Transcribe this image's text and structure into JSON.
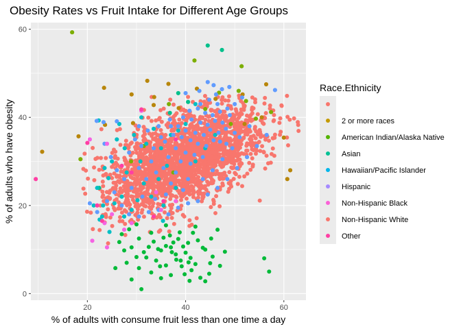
{
  "chart_data": {
    "type": "scatter",
    "title": "Obesity Rates vs Fruit Intake for Different Age Groups",
    "xlabel": "% of adults with consume fruit less than one time a day",
    "ylabel": "% of adults who have obesity",
    "xlim": [
      8.5,
      64.5
    ],
    "ylim": [
      -1.5,
      61.5
    ],
    "x_ticks": [
      20,
      40,
      60
    ],
    "y_ticks": [
      0,
      20,
      40,
      60
    ],
    "grid": true,
    "panel_background": "#EBEBEB",
    "legend": {
      "title": "Race.Ethnicity",
      "position": "right",
      "entries": [
        {
          "label": "",
          "color": "#F8766D"
        },
        {
          "label": "2 or more races",
          "color": "#C49A00"
        },
        {
          "label": "American Indian/Alaska Native",
          "color": "#53B400"
        },
        {
          "label": "Asian",
          "color": "#00C094"
        },
        {
          "label": "Hawaiian/Pacific Islander",
          "color": "#00B6EB"
        },
        {
          "label": "Hispanic",
          "color": "#A58AFF"
        },
        {
          "label": "Non-Hispanic Black",
          "color": "#FB61D7"
        },
        {
          "label": "Non-Hispanic White",
          "color": "#F8766D"
        },
        {
          "label": "Other",
          "color": "#FF3FA4"
        }
      ]
    },
    "series": [
      {
        "name": "",
        "color": "#F8766D",
        "cloud": {
          "center": [
            40,
            31
          ],
          "spread": [
            8,
            6
          ],
          "n": 2200,
          "seed": 7,
          "x_range": [
            18.5,
            63
          ],
          "y_range": [
            10,
            45
          ]
        }
      },
      {
        "name": "2 or more races",
        "color": "#B8860B",
        "points": [
          [
            10.8,
            32.2
          ],
          [
            18.2,
            35.7
          ],
          [
            23.4,
            46.7
          ],
          [
            23.6,
            38.3
          ],
          [
            32.2,
            48.3
          ],
          [
            36.5,
            47.6
          ],
          [
            29,
            45.2
          ],
          [
            33.6,
            44.6
          ],
          [
            42.3,
            46.5
          ],
          [
            51.6,
            45.2
          ],
          [
            56.4,
            47.5
          ],
          [
            60,
            35.4
          ],
          [
            61.3,
            28
          ],
          [
            60.7,
            26
          ],
          [
            33.5,
            42.8
          ],
          [
            46.1,
            44.2
          ],
          [
            55.5,
            40
          ],
          [
            38.6,
            42.1
          ],
          [
            29.3,
            38.7
          ],
          [
            52,
            38.5
          ]
        ]
      },
      {
        "name": "American Indian/Alaska Native",
        "color": "#7CAE00",
        "points": [
          [
            16.9,
            59.3
          ],
          [
            18.6,
            30.5
          ],
          [
            41.8,
            52.9
          ],
          [
            51.4,
            51.6
          ],
          [
            50.8,
            46
          ],
          [
            57.4,
            41.2
          ],
          [
            46.8,
            45.6
          ],
          [
            52.3,
            43.7
          ],
          [
            36.6,
            43
          ],
          [
            44,
            41.9
          ],
          [
            28.9,
            30
          ],
          [
            31.5,
            33.5
          ],
          [
            49.2,
            38.5
          ],
          [
            54.3,
            39.7
          ],
          [
            37.5,
            27.5
          ]
        ]
      },
      {
        "name": "Asian",
        "color": "#00BA38",
        "points": [
          [
            31,
            1
          ],
          [
            29,
            3.2
          ],
          [
            30.5,
            5.8
          ],
          [
            32,
            8.2
          ],
          [
            33,
            4.8
          ],
          [
            34,
            7.5
          ],
          [
            35,
            9.8
          ],
          [
            36,
            6.4
          ],
          [
            37,
            10.5
          ],
          [
            38,
            8.9
          ],
          [
            39,
            7.5
          ],
          [
            40,
            9.3
          ],
          [
            41,
            8.1
          ],
          [
            42,
            6.7
          ],
          [
            43,
            3.6
          ],
          [
            44,
            2.8
          ],
          [
            44.8,
            4.5
          ],
          [
            45,
            6.9
          ],
          [
            45.5,
            8.4
          ],
          [
            47,
            6.3
          ],
          [
            33.5,
            11.8
          ],
          [
            35.5,
            12.7
          ],
          [
            36.8,
            13.2
          ],
          [
            37.5,
            11.6
          ],
          [
            38.5,
            12.4
          ],
          [
            39.5,
            10.7
          ],
          [
            40.5,
            11.5
          ],
          [
            41.5,
            13.8
          ],
          [
            42.5,
            12.1
          ],
          [
            34.4,
            10.1
          ],
          [
            36,
            10.8
          ],
          [
            37.2,
            9.4
          ],
          [
            38.1,
            7.7
          ],
          [
            39.2,
            6.2
          ],
          [
            40.6,
            7.1
          ],
          [
            41.2,
            5.3
          ],
          [
            32.5,
            10.6
          ],
          [
            31.5,
            9.4
          ],
          [
            30,
            8.3
          ],
          [
            29,
            10.5
          ],
          [
            27.5,
            9.8
          ],
          [
            26.5,
            11.7
          ],
          [
            27,
            13.5
          ],
          [
            28.5,
            14.6
          ],
          [
            30.5,
            12.5
          ],
          [
            25.7,
            5.8
          ],
          [
            28,
            7
          ],
          [
            35,
            3.5
          ],
          [
            37,
            4.2
          ],
          [
            39.8,
            4.4
          ],
          [
            43.5,
            10.4
          ],
          [
            45.2,
            12.5
          ],
          [
            46.5,
            14.5
          ],
          [
            48,
            9.5
          ],
          [
            40.8,
            2.9
          ],
          [
            57,
            5
          ],
          [
            56,
            8
          ],
          [
            44,
            10
          ],
          [
            38.8,
            13.9
          ],
          [
            42,
            15.2
          ],
          [
            33,
            13.8
          ],
          [
            36,
            15.5
          ],
          [
            30,
            15.7
          ],
          [
            34.8,
            6.2
          ]
        ]
      },
      {
        "name": "Hawaiian/Pacific Islander",
        "color": "#00C08B",
        "points": [
          [
            44.5,
            56.3
          ],
          [
            47.4,
            55.3
          ],
          [
            38.5,
            45.5
          ],
          [
            40.5,
            43.5
          ],
          [
            36.8,
            41
          ],
          [
            22.4,
            24
          ]
        ]
      },
      {
        "name": "Hispanic",
        "color": "#00BFC4",
        "points": [
          [
            22.3,
            39.3
          ],
          [
            26,
            35
          ],
          [
            27.6,
            33
          ],
          [
            29.5,
            36
          ],
          [
            32,
            34
          ],
          [
            33.5,
            37.4
          ],
          [
            35,
            33
          ],
          [
            37,
            36
          ],
          [
            25,
            30
          ],
          [
            23.5,
            28.5
          ],
          [
            22,
            24
          ],
          [
            30.8,
            30
          ],
          [
            28,
            27.5
          ],
          [
            34.5,
            26
          ],
          [
            36.2,
            29
          ],
          [
            24.3,
            26.2
          ],
          [
            31.5,
            25
          ],
          [
            27,
            22
          ],
          [
            23,
            17.5
          ],
          [
            25.5,
            20.5
          ],
          [
            33,
            22
          ],
          [
            29,
            19
          ],
          [
            35.5,
            20
          ],
          [
            38,
            24
          ],
          [
            42,
            30
          ],
          [
            44,
            33
          ],
          [
            40,
            38.5
          ],
          [
            46,
            36
          ],
          [
            31,
            40
          ],
          [
            42,
            43
          ],
          [
            38.5,
            37
          ],
          [
            26.5,
            38.5
          ],
          [
            30.2,
            21.2
          ],
          [
            35.4,
            16.5
          ],
          [
            23.2,
            20
          ],
          [
            21.3,
            20
          ],
          [
            24.5,
            14
          ],
          [
            22.5,
            16.8
          ],
          [
            27.5,
            17.5
          ]
        ]
      },
      {
        "name": "Non-Hispanic Black",
        "color": "#619CFF",
        "points": [
          [
            21.9,
            39.2
          ],
          [
            26,
            39.1
          ],
          [
            23.3,
            38.9
          ],
          [
            30.5,
            38
          ],
          [
            40,
            45.5
          ],
          [
            42.8,
            46
          ],
          [
            44.5,
            48
          ],
          [
            45.7,
            47.3
          ],
          [
            47.4,
            46.4
          ],
          [
            46.2,
            45.2
          ],
          [
            48.9,
            46.9
          ],
          [
            51.5,
            44.5
          ],
          [
            58.2,
            46.2
          ],
          [
            43,
            43
          ],
          [
            44.8,
            44
          ],
          [
            46.5,
            43
          ],
          [
            40.8,
            41.5
          ],
          [
            42.5,
            42
          ],
          [
            44,
            41
          ],
          [
            45.5,
            40.5
          ],
          [
            47,
            41.3
          ],
          [
            48.5,
            42
          ],
          [
            50,
            43
          ],
          [
            39.5,
            40
          ],
          [
            41.2,
            39.5
          ],
          [
            43,
            38.8
          ],
          [
            44.5,
            38.3
          ],
          [
            46,
            39.2
          ],
          [
            47.5,
            38.8
          ],
          [
            49,
            40.5
          ],
          [
            36.8,
            39.5
          ],
          [
            38.5,
            38
          ],
          [
            40,
            37
          ],
          [
            42,
            36.5
          ],
          [
            43.7,
            36
          ],
          [
            45,
            37.2
          ],
          [
            46.7,
            36.5
          ],
          [
            48.2,
            37.4
          ],
          [
            37.5,
            36
          ],
          [
            39.2,
            35.5
          ],
          [
            41,
            34.8
          ],
          [
            42.5,
            34
          ],
          [
            44.2,
            33.5
          ],
          [
            45.7,
            34.8
          ],
          [
            47,
            34.5
          ],
          [
            35.8,
            34.5
          ],
          [
            38,
            33
          ],
          [
            40,
            32
          ],
          [
            41.8,
            31.5
          ],
          [
            43.5,
            31
          ],
          [
            36.5,
            31
          ],
          [
            39,
            30
          ],
          [
            41,
            29.5
          ],
          [
            33.5,
            33
          ],
          [
            35,
            35.5
          ],
          [
            37,
            38
          ],
          [
            34.5,
            38
          ],
          [
            32.3,
            37
          ],
          [
            29.7,
            35
          ],
          [
            31,
            33.5
          ],
          [
            28.5,
            32
          ],
          [
            33,
            30
          ],
          [
            30.5,
            28.5
          ],
          [
            34,
            27.5
          ],
          [
            32,
            26
          ],
          [
            35.5,
            28.5
          ],
          [
            38,
            27.5
          ],
          [
            40.5,
            26
          ],
          [
            37,
            25
          ],
          [
            39.5,
            23.5
          ],
          [
            36,
            22.5
          ],
          [
            33.8,
            21.5
          ],
          [
            31.2,
            22
          ],
          [
            29,
            24
          ],
          [
            27.5,
            26
          ],
          [
            26,
            28
          ],
          [
            24.8,
            31
          ],
          [
            23.5,
            34
          ],
          [
            20.5,
            20.5
          ],
          [
            22,
            18.5
          ],
          [
            24,
            21
          ],
          [
            25.5,
            23
          ],
          [
            27,
            20
          ],
          [
            28.5,
            18
          ],
          [
            30.5,
            17.5
          ],
          [
            32.5,
            18.5
          ],
          [
            34.5,
            19
          ],
          [
            36.5,
            18
          ],
          [
            38.5,
            19.5
          ],
          [
            40.5,
            20.5
          ],
          [
            42.5,
            21
          ],
          [
            44.5,
            22.5
          ],
          [
            46.5,
            24
          ],
          [
            48.5,
            26
          ],
          [
            50.5,
            28.5
          ],
          [
            52.5,
            31
          ],
          [
            54.5,
            33.5
          ],
          [
            56.5,
            36
          ],
          [
            51,
            35.5
          ],
          [
            53,
            38
          ],
          [
            49.5,
            33
          ],
          [
            47.5,
            30.5
          ],
          [
            45.5,
            28
          ],
          [
            43.5,
            26
          ],
          [
            50,
            36.5
          ],
          [
            48.3,
            34
          ]
        ]
      },
      {
        "name": "Non-Hispanic White",
        "color": "#F564E3",
        "points": [
          [
            31,
            41.5
          ],
          [
            20.5,
            35
          ],
          [
            24,
            34
          ],
          [
            34,
            23
          ],
          [
            25,
            18
          ],
          [
            22,
            20
          ],
          [
            29,
            16
          ],
          [
            35,
            19
          ],
          [
            38,
            21
          ],
          [
            24,
            10.5
          ],
          [
            21,
            12
          ],
          [
            23.5,
            16
          ],
          [
            27.5,
            14.5
          ]
        ]
      },
      {
        "name": "Other",
        "color": "#FF3FA4",
        "points": [
          [
            9.5,
            26
          ],
          [
            20,
            34.2
          ],
          [
            31,
            41.8
          ],
          [
            27,
            29
          ],
          [
            23,
            16.5
          ],
          [
            35.5,
            21
          ],
          [
            29,
            27.5
          ],
          [
            22,
            20
          ],
          [
            33.5,
            17.5
          ],
          [
            38,
            35
          ]
        ]
      }
    ]
  }
}
